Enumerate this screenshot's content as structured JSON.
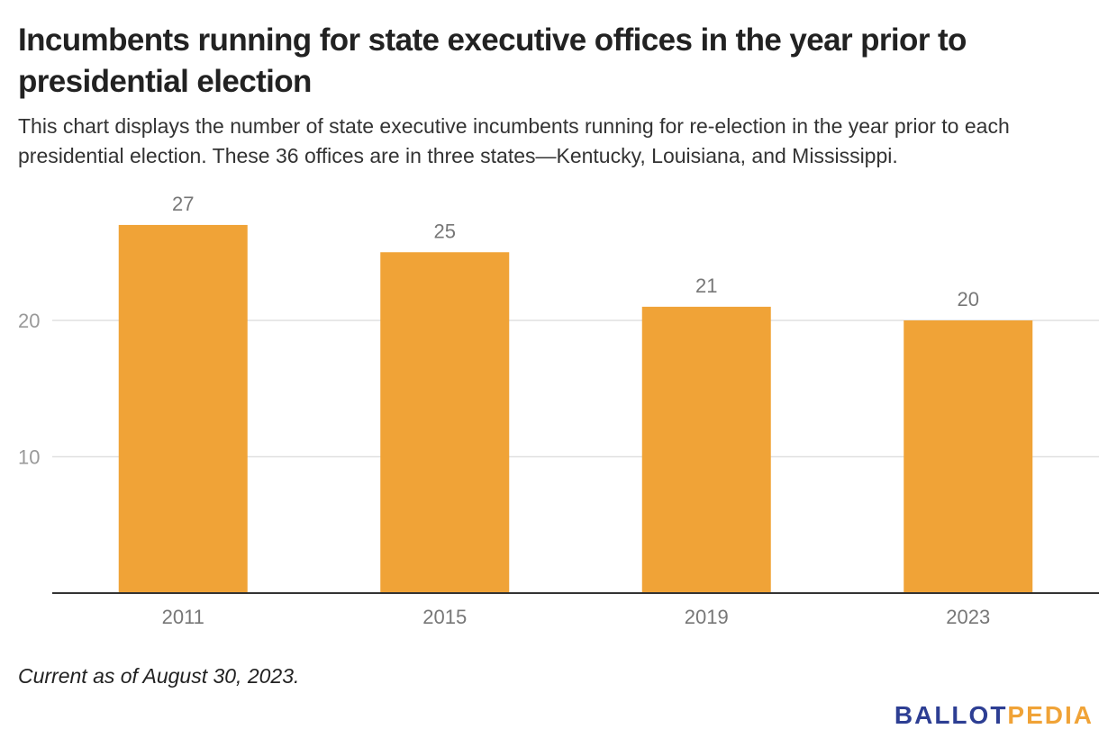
{
  "title": "Incumbents running for state executive offices in the year prior to presidential election",
  "subtitle": "This chart displays the number of state executive incumbents running for re-election in the year prior to each presidential election. These 36 offices are in three states—Kentucky, Louisiana, and Mississippi.",
  "footnote": "Current as of August 30, 2023.",
  "logo": {
    "part1": "BALLOT",
    "part2": "PEDIA"
  },
  "colors": {
    "bar": "#f0a337",
    "grid": "#e0e0e0",
    "axis": "#333333",
    "label": "#777777",
    "tick": "#999999",
    "logo_primary": "#2d3e93",
    "logo_accent": "#f0a337"
  },
  "chart_data": {
    "type": "bar",
    "title": "Incumbents running for state executive offices in the year prior to presidential election",
    "categories": [
      "2011",
      "2015",
      "2019",
      "2023"
    ],
    "values": [
      27,
      25,
      21,
      20
    ],
    "data_labels": [
      "27",
      "25",
      "21",
      "20"
    ],
    "xlabel": "",
    "ylabel": "",
    "ylim": [
      0,
      30
    ],
    "yticks": [
      10,
      20
    ],
    "ytick_labels": [
      "10",
      "20"
    ],
    "grid": true,
    "legend": "none"
  }
}
